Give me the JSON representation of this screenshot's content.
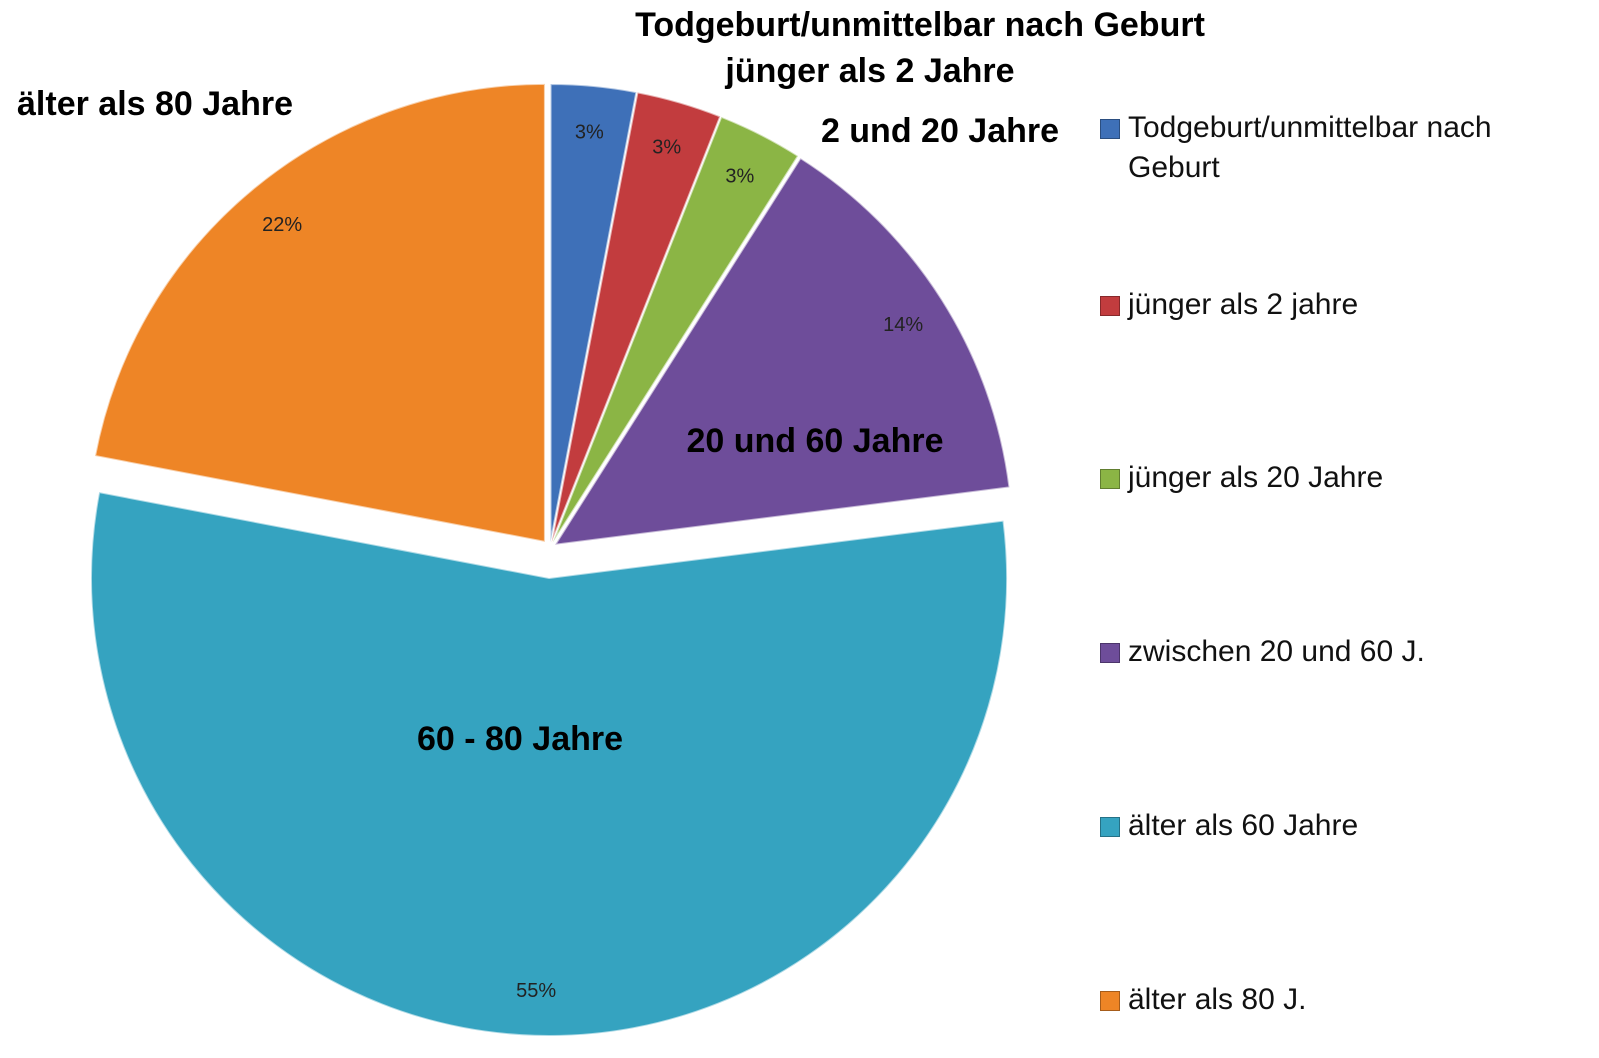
{
  "chart_data": {
    "type": "pie",
    "categories": [
      "Todgeburt/unmittelbar nach Geburt",
      "jünger als 2 jahre",
      "jünger als 20 Jahre",
      "zwischen 20 und 60 J.",
      "älter als 60 Jahre",
      "älter als 80 J."
    ],
    "values": [
      3,
      3,
      3,
      14,
      55,
      22
    ],
    "value_labels": [
      "3%",
      "3%",
      "3%",
      "14%",
      "55%",
      "22%"
    ],
    "colors": [
      "#3e70b8",
      "#c23c3e",
      "#8bb545",
      "#6e4d9a",
      "#35a3c0",
      "#ee8526"
    ],
    "annotations": [
      "Todgeburt/unmittelbar nach Geburt",
      "jünger als 2 Jahre",
      "2 und 20 Jahre",
      "20 und 60 Jahre",
      "60 - 80 Jahre",
      "älter als 80 Jahre"
    ],
    "legend": "right"
  }
}
